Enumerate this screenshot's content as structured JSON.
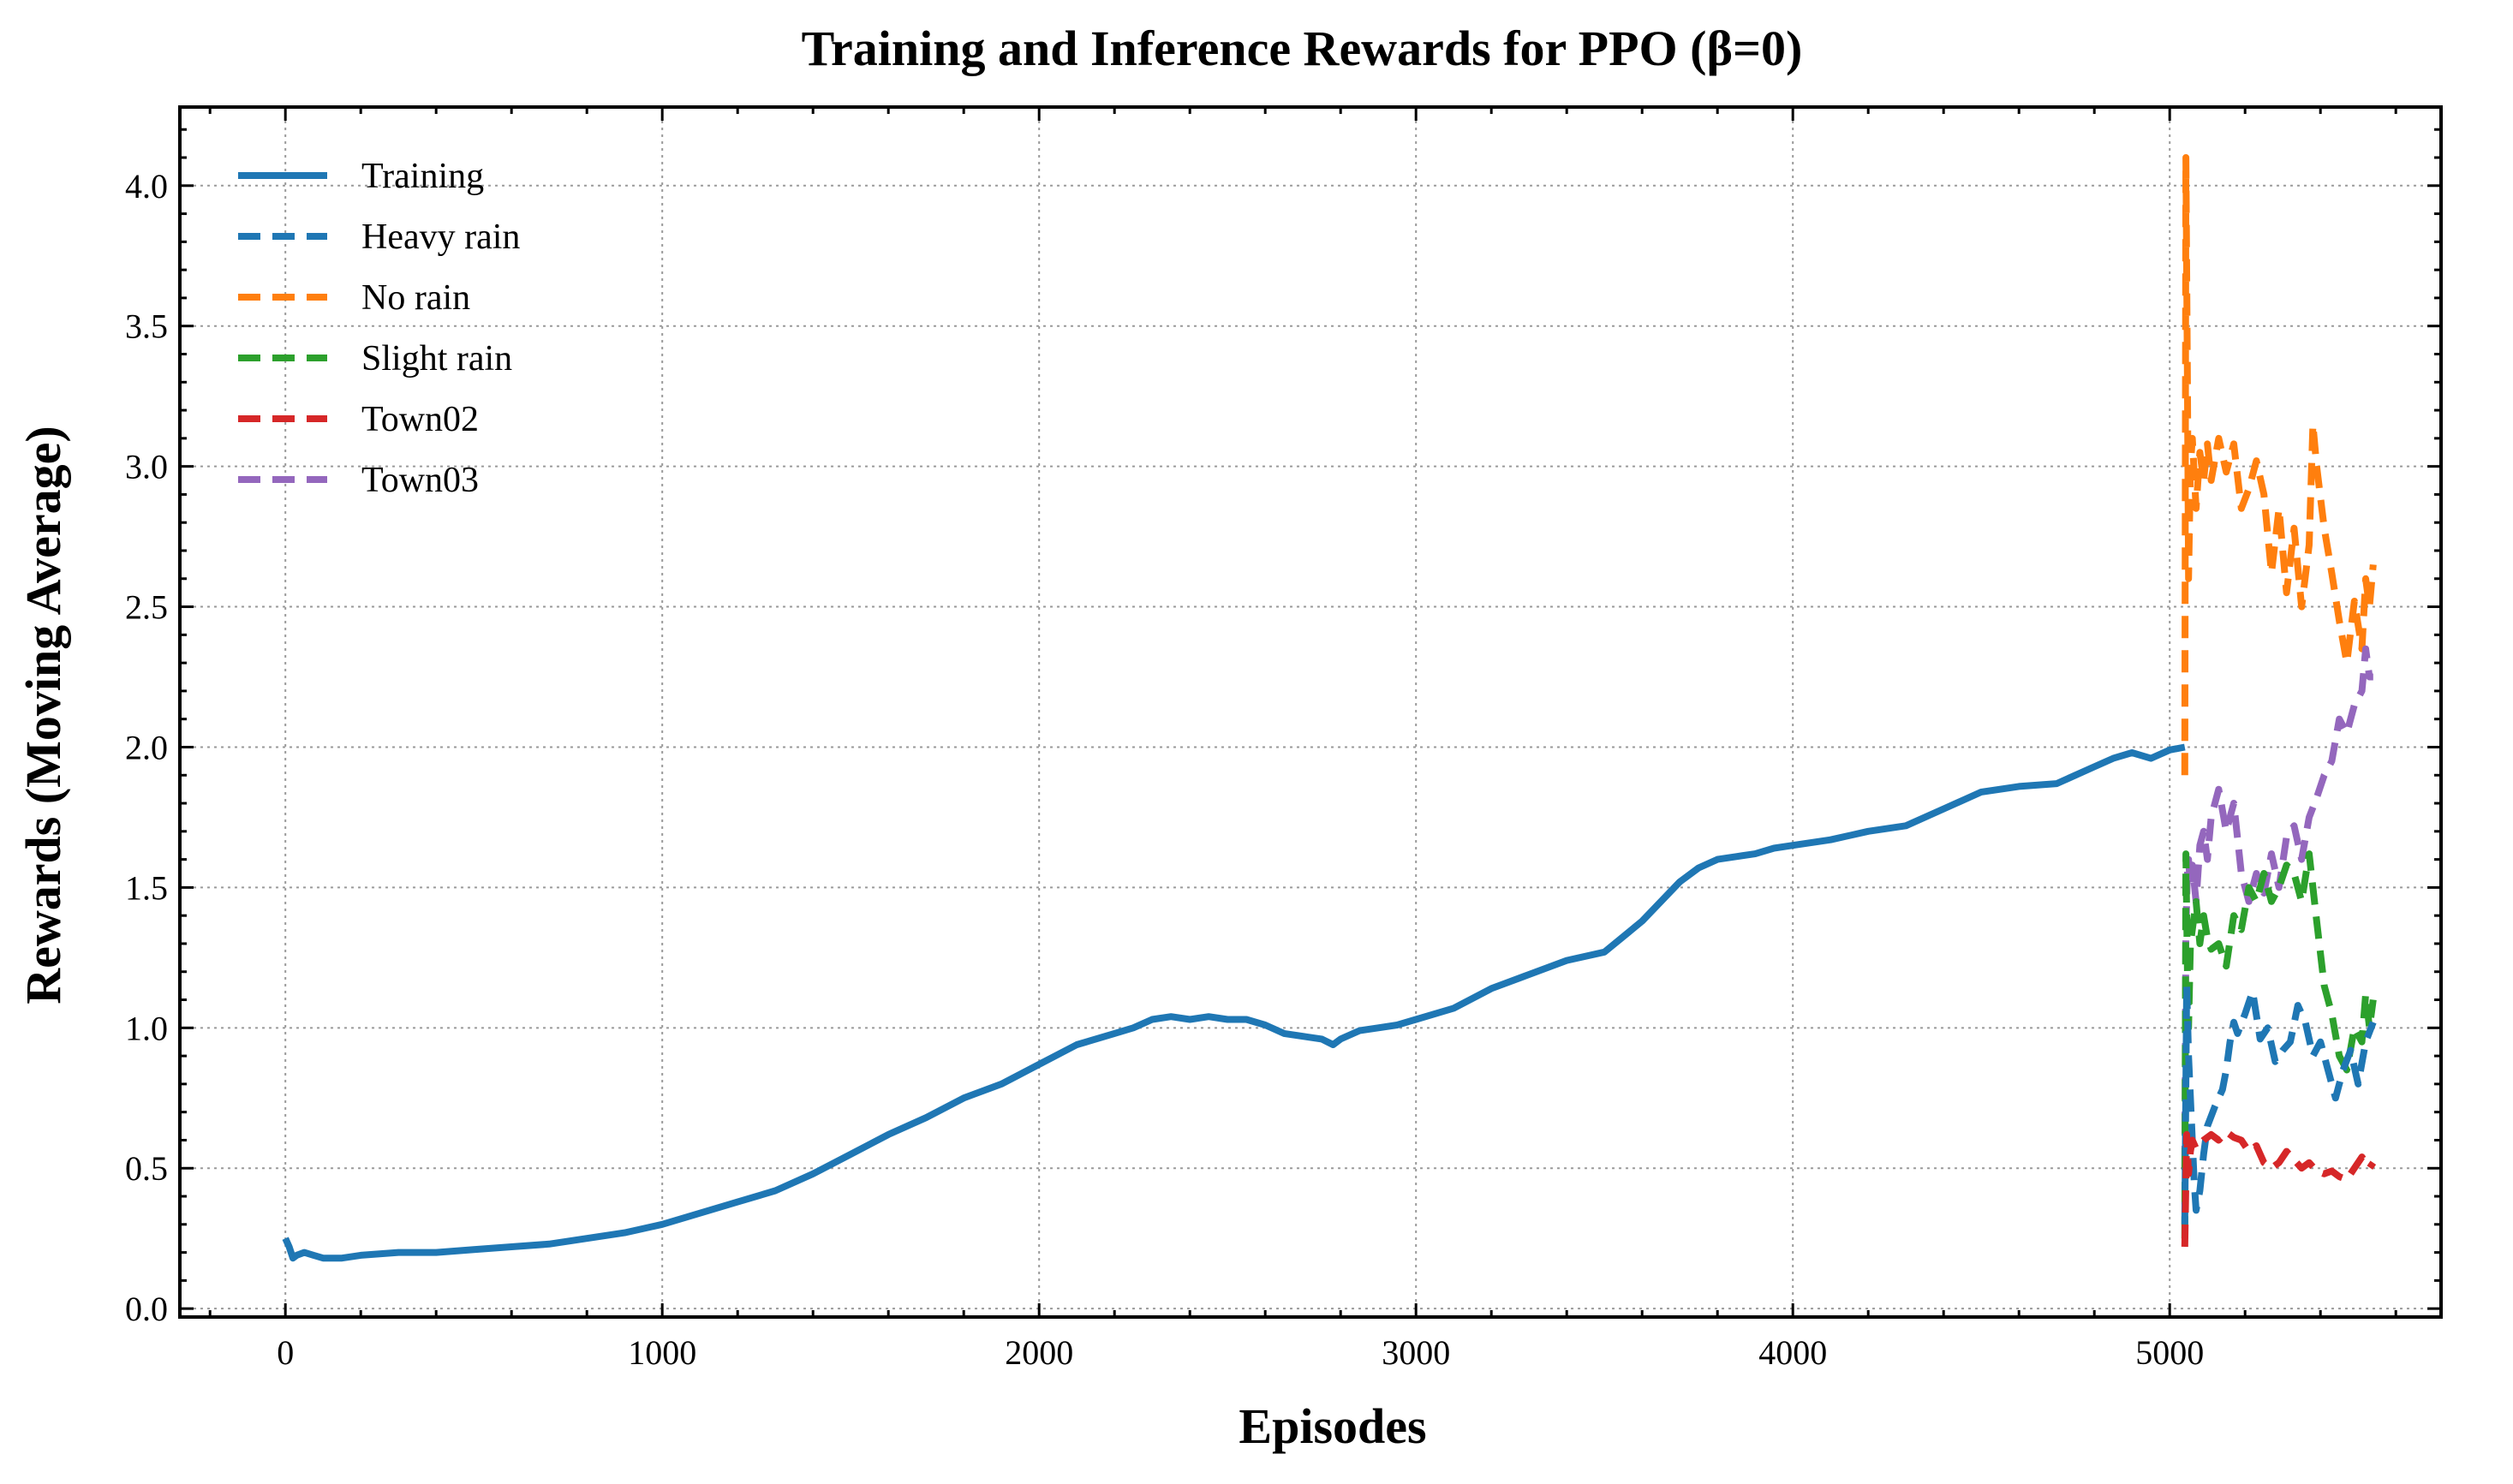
{
  "chart_data": {
    "type": "line",
    "title": "Training and Inference Rewards for PPO (β=0)",
    "xlabel": "Episodes",
    "ylabel": "Rewards (Moving Average)",
    "xlim": [
      -280,
      5720
    ],
    "ylim": [
      -0.03,
      4.28
    ],
    "xticks": [
      0,
      1000,
      2000,
      3000,
      4000,
      5000
    ],
    "xtick_labels": [
      "0",
      "1000",
      "2000",
      "3000",
      "4000",
      "5000"
    ],
    "yticks": [
      0.0,
      0.5,
      1.0,
      1.5,
      2.0,
      2.5,
      3.0,
      3.5,
      4.0
    ],
    "ytick_labels": [
      "0.0",
      "0.5",
      "1.0",
      "1.5",
      "2.0",
      "2.5",
      "3.0",
      "3.5",
      "4.0"
    ],
    "grid": true,
    "legend_position": "top-left",
    "series": [
      {
        "name": "Training",
        "color": "#1f77b4",
        "style": "solid",
        "x": [
          0,
          10,
          20,
          30,
          50,
          75,
          100,
          150,
          200,
          300,
          400,
          500,
          600,
          700,
          800,
          900,
          1000,
          1100,
          1200,
          1300,
          1400,
          1500,
          1600,
          1700,
          1800,
          1900,
          2000,
          2100,
          2200,
          2250,
          2300,
          2350,
          2400,
          2450,
          2500,
          2550,
          2600,
          2650,
          2700,
          2750,
          2780,
          2800,
          2850,
          2900,
          2950,
          3000,
          3100,
          3200,
          3300,
          3400,
          3500,
          3600,
          3700,
          3750,
          3800,
          3850,
          3900,
          3950,
          4000,
          4100,
          4200,
          4300,
          4400,
          4500,
          4600,
          4700,
          4800,
          4850,
          4900,
          4950,
          5000,
          5040
        ],
        "y": [
          0.25,
          0.22,
          0.18,
          0.19,
          0.2,
          0.19,
          0.18,
          0.18,
          0.19,
          0.2,
          0.2,
          0.21,
          0.22,
          0.23,
          0.25,
          0.27,
          0.3,
          0.34,
          0.38,
          0.42,
          0.48,
          0.55,
          0.62,
          0.68,
          0.75,
          0.8,
          0.87,
          0.94,
          0.98,
          1.0,
          1.03,
          1.04,
          1.03,
          1.04,
          1.03,
          1.03,
          1.01,
          0.98,
          0.97,
          0.96,
          0.94,
          0.96,
          0.99,
          1.0,
          1.01,
          1.03,
          1.07,
          1.14,
          1.19,
          1.24,
          1.27,
          1.38,
          1.52,
          1.57,
          1.6,
          1.61,
          1.62,
          1.64,
          1.65,
          1.67,
          1.7,
          1.72,
          1.78,
          1.84,
          1.86,
          1.87,
          1.93,
          1.96,
          1.98,
          1.96,
          1.99,
          2.0
        ]
      },
      {
        "name": "Heavy rain",
        "color": "#1f77b4",
        "style": "dashed",
        "x": [
          5040,
          5045,
          5050,
          5055,
          5060,
          5065,
          5070,
          5080,
          5090,
          5100,
          5120,
          5140,
          5150,
          5160,
          5170,
          5180,
          5200,
          5220,
          5240,
          5260,
          5280,
          5300,
          5320,
          5340,
          5360,
          5380,
          5400,
          5420,
          5440,
          5460,
          5480,
          5500,
          5520,
          5540
        ],
        "y": [
          0.3,
          1.15,
          0.9,
          0.75,
          0.6,
          0.45,
          0.35,
          0.42,
          0.55,
          0.65,
          0.72,
          0.78,
          0.85,
          0.95,
          1.02,
          0.98,
          1.05,
          1.13,
          0.96,
          1.0,
          0.88,
          0.92,
          0.95,
          1.08,
          1.02,
          0.9,
          0.95,
          0.85,
          0.75,
          0.85,
          0.92,
          0.8,
          0.95,
          1.02
        ]
      },
      {
        "name": "No rain",
        "color": "#ff7f0e",
        "style": "dashed",
        "x": [
          5040,
          5043,
          5047,
          5050,
          5055,
          5060,
          5070,
          5080,
          5090,
          5100,
          5110,
          5130,
          5150,
          5170,
          5190,
          5210,
          5230,
          5250,
          5270,
          5290,
          5310,
          5330,
          5350,
          5370,
          5380,
          5390,
          5410,
          5430,
          5450,
          5470,
          5490,
          5510,
          5520,
          5530,
          5540
        ],
        "y": [
          1.9,
          4.1,
          3.3,
          2.6,
          3.0,
          3.1,
          2.85,
          3.05,
          2.95,
          3.08,
          2.95,
          3.1,
          2.98,
          3.08,
          2.85,
          2.92,
          3.02,
          2.9,
          2.62,
          2.85,
          2.55,
          2.78,
          2.5,
          2.72,
          3.15,
          3.0,
          2.78,
          2.62,
          2.45,
          2.3,
          2.52,
          2.35,
          2.6,
          2.5,
          2.65
        ]
      },
      {
        "name": "Slight rain",
        "color": "#2ca02c",
        "style": "dashed",
        "x": [
          5040,
          5043,
          5047,
          5050,
          5055,
          5060,
          5070,
          5080,
          5090,
          5100,
          5110,
          5130,
          5150,
          5170,
          5190,
          5210,
          5230,
          5250,
          5270,
          5290,
          5310,
          5330,
          5350,
          5370,
          5390,
          5410,
          5430,
          5450,
          5470,
          5490,
          5510,
          5520,
          5530,
          5540
        ],
        "y": [
          0.25,
          1.62,
          1.2,
          1.0,
          1.3,
          1.35,
          1.45,
          1.3,
          1.4,
          1.32,
          1.28,
          1.3,
          1.22,
          1.4,
          1.35,
          1.5,
          1.45,
          1.55,
          1.45,
          1.5,
          1.58,
          1.55,
          1.45,
          1.62,
          1.38,
          1.15,
          1.05,
          0.9,
          0.85,
          1.0,
          0.95,
          1.12,
          1.0,
          1.1
        ]
      },
      {
        "name": "Town02",
        "color": "#d62728",
        "style": "dashed",
        "x": [
          5040,
          5045,
          5050,
          5055,
          5060,
          5070,
          5090,
          5110,
          5130,
          5150,
          5170,
          5190,
          5210,
          5230,
          5250,
          5270,
          5290,
          5310,
          5330,
          5350,
          5370,
          5390,
          5410,
          5430,
          5450,
          5470,
          5490,
          5510,
          5530,
          5540
        ],
        "y": [
          0.22,
          0.62,
          0.48,
          0.56,
          0.6,
          0.57,
          0.6,
          0.62,
          0.6,
          0.63,
          0.61,
          0.6,
          0.56,
          0.58,
          0.52,
          0.5,
          0.52,
          0.56,
          0.53,
          0.5,
          0.52,
          0.49,
          0.48,
          0.49,
          0.47,
          0.46,
          0.5,
          0.54,
          0.5,
          0.52
        ]
      },
      {
        "name": "Town03",
        "color": "#9467bd",
        "style": "dashed",
        "x": [
          5040,
          5043,
          5047,
          5050,
          5055,
          5060,
          5070,
          5080,
          5090,
          5100,
          5110,
          5130,
          5150,
          5170,
          5190,
          5210,
          5230,
          5250,
          5270,
          5290,
          5310,
          5330,
          5350,
          5370,
          5390,
          5410,
          5430,
          5450,
          5470,
          5490,
          5510,
          5520,
          5530,
          5540
        ],
        "y": [
          0.5,
          1.35,
          1.55,
          1.6,
          1.5,
          1.58,
          1.45,
          1.65,
          1.7,
          1.6,
          1.75,
          1.85,
          1.7,
          1.8,
          1.55,
          1.45,
          1.55,
          1.48,
          1.62,
          1.5,
          1.68,
          1.72,
          1.6,
          1.75,
          1.82,
          1.9,
          1.95,
          2.1,
          2.05,
          2.15,
          2.2,
          2.35,
          2.25,
          2.25
        ]
      }
    ]
  }
}
